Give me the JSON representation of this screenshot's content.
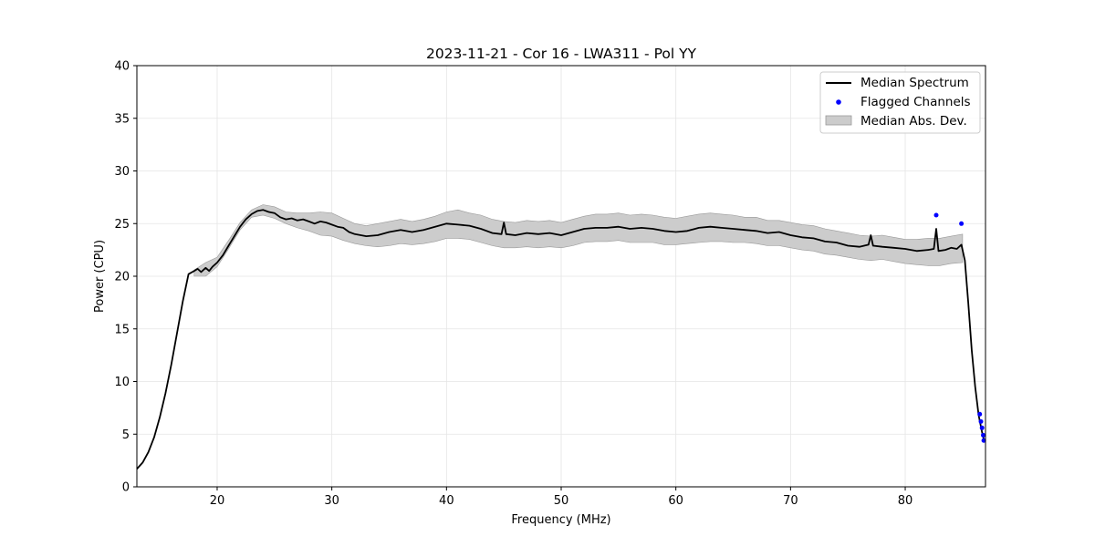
{
  "chart_data": {
    "type": "line",
    "title": "2023-11-21 - Cor 16 - LWA311 - Pol YY",
    "xlabel": "Frequency (MHz)",
    "ylabel": "Power (CPU)",
    "xlim": [
      13,
      87
    ],
    "ylim": [
      0,
      40
    ],
    "xticks": [
      20,
      30,
      40,
      50,
      60,
      70,
      80
    ],
    "yticks": [
      0,
      5,
      10,
      15,
      20,
      25,
      30,
      35,
      40
    ],
    "grid": true,
    "legend_position": "top-right",
    "colors": {
      "median": "#000000",
      "flagged": "#0000ff",
      "mad_fill": "#cccccc",
      "mad_edge": "#999999",
      "grid": "#e5e5e5"
    },
    "legend": [
      {
        "label": "Median Spectrum",
        "kind": "line"
      },
      {
        "label": "Flagged Channels",
        "kind": "marker"
      },
      {
        "label": "Median Abs. Dev.",
        "kind": "patch"
      }
    ],
    "series": [
      {
        "name": "Median Spectrum",
        "x": [
          13.0,
          13.5,
          14.0,
          14.5,
          15.0,
          15.5,
          16.0,
          16.5,
          17.0,
          17.5,
          18.0,
          18.3,
          18.6,
          19.0,
          19.3,
          19.6,
          20.0,
          20.5,
          21.0,
          21.5,
          22.0,
          22.5,
          23.0,
          23.5,
          24.0,
          24.5,
          25.0,
          25.5,
          26.0,
          26.5,
          27.0,
          27.5,
          28.0,
          28.5,
          29.0,
          29.5,
          30.0,
          30.5,
          31.0,
          31.5,
          32.0,
          33.0,
          34.0,
          35.0,
          36.0,
          37.0,
          38.0,
          39.0,
          40.0,
          41.0,
          42.0,
          43.0,
          44.0,
          44.8,
          45.0,
          45.2,
          46.0,
          47.0,
          48.0,
          49.0,
          50.0,
          51.0,
          52.0,
          53.0,
          54.0,
          55.0,
          56.0,
          57.0,
          58.0,
          59.0,
          60.0,
          61.0,
          62.0,
          63.0,
          64.0,
          65.0,
          66.0,
          67.0,
          68.0,
          69.0,
          70.0,
          71.0,
          72.0,
          73.0,
          74.0,
          75.0,
          76.0,
          76.8,
          77.0,
          77.2,
          78.0,
          79.0,
          80.0,
          81.0,
          82.0,
          82.5,
          82.7,
          82.9,
          83.5,
          84.0,
          84.5,
          84.9,
          85.2,
          85.5,
          85.8,
          86.1,
          86.4,
          86.7,
          86.9
        ],
        "y": [
          1.7,
          2.3,
          3.3,
          4.7,
          6.6,
          8.9,
          11.6,
          14.6,
          17.6,
          20.2,
          20.5,
          20.7,
          20.4,
          20.8,
          20.5,
          20.9,
          21.3,
          22.0,
          22.9,
          23.8,
          24.7,
          25.4,
          25.9,
          26.2,
          26.3,
          26.1,
          26.0,
          25.6,
          25.4,
          25.5,
          25.3,
          25.4,
          25.2,
          25.0,
          25.2,
          25.1,
          24.9,
          24.7,
          24.6,
          24.2,
          24.0,
          23.8,
          23.9,
          24.2,
          24.4,
          24.2,
          24.4,
          24.7,
          25.0,
          24.9,
          24.8,
          24.5,
          24.1,
          24.0,
          25.1,
          24.0,
          23.9,
          24.1,
          24.0,
          24.1,
          23.9,
          24.2,
          24.5,
          24.6,
          24.6,
          24.7,
          24.5,
          24.6,
          24.5,
          24.3,
          24.2,
          24.3,
          24.6,
          24.7,
          24.6,
          24.5,
          24.4,
          24.3,
          24.1,
          24.2,
          23.9,
          23.7,
          23.6,
          23.3,
          23.2,
          22.9,
          22.8,
          23.0,
          23.9,
          22.9,
          22.8,
          22.7,
          22.6,
          22.4,
          22.5,
          22.6,
          24.5,
          22.4,
          22.5,
          22.7,
          22.6,
          23.0,
          21.5,
          17.5,
          13.0,
          9.5,
          6.8,
          5.2,
          4.3
        ]
      },
      {
        "name": "Flagged Channels",
        "x": [
          82.7,
          84.9,
          86.5,
          86.6,
          86.7,
          86.8,
          86.85
        ],
        "y": [
          25.8,
          25.0,
          6.9,
          6.2,
          5.6,
          4.9,
          4.4
        ]
      },
      {
        "name": "Median Abs. Dev.",
        "x": [
          18.0,
          19.0,
          20.0,
          21.0,
          22.0,
          23.0,
          24.0,
          25.0,
          26.0,
          27.0,
          28.0,
          29.0,
          30.0,
          31.0,
          32.0,
          33.0,
          34.0,
          35.0,
          36.0,
          37.0,
          38.0,
          39.0,
          40.0,
          41.0,
          42.0,
          43.0,
          44.0,
          45.0,
          46.0,
          47.0,
          48.0,
          49.0,
          50.0,
          51.0,
          52.0,
          53.0,
          54.0,
          55.0,
          56.0,
          57.0,
          58.0,
          59.0,
          60.0,
          61.0,
          62.0,
          63.0,
          64.0,
          65.0,
          66.0,
          67.0,
          68.0,
          69.0,
          70.0,
          71.0,
          72.0,
          73.0,
          74.0,
          75.0,
          76.0,
          77.0,
          78.0,
          79.0,
          80.0,
          81.0,
          82.0,
          83.0,
          84.0,
          85.0
        ],
        "lower": [
          20.0,
          20.0,
          20.9,
          22.6,
          24.4,
          25.6,
          25.8,
          25.5,
          25.0,
          24.6,
          24.3,
          23.9,
          23.8,
          23.4,
          23.1,
          22.9,
          22.8,
          22.9,
          23.1,
          23.0,
          23.1,
          23.3,
          23.6,
          23.6,
          23.5,
          23.2,
          22.9,
          22.7,
          22.7,
          22.8,
          22.7,
          22.8,
          22.7,
          22.9,
          23.2,
          23.3,
          23.3,
          23.4,
          23.2,
          23.2,
          23.2,
          23.0,
          23.0,
          23.1,
          23.2,
          23.3,
          23.3,
          23.2,
          23.2,
          23.1,
          22.9,
          22.9,
          22.7,
          22.5,
          22.4,
          22.1,
          22.0,
          21.8,
          21.6,
          21.5,
          21.6,
          21.4,
          21.2,
          21.1,
          21.0,
          21.0,
          21.2,
          21.3
        ],
        "upper": [
          20.6,
          21.3,
          21.8,
          23.4,
          25.1,
          26.3,
          26.8,
          26.6,
          26.1,
          26.0,
          26.0,
          26.1,
          26.0,
          25.5,
          25.0,
          24.8,
          25.0,
          25.2,
          25.4,
          25.2,
          25.4,
          25.7,
          26.1,
          26.3,
          26.0,
          25.8,
          25.4,
          25.2,
          25.1,
          25.3,
          25.2,
          25.3,
          25.1,
          25.4,
          25.7,
          25.9,
          25.9,
          26.0,
          25.8,
          25.9,
          25.8,
          25.6,
          25.5,
          25.7,
          25.9,
          26.0,
          25.9,
          25.8,
          25.6,
          25.6,
          25.3,
          25.3,
          25.1,
          24.9,
          24.8,
          24.5,
          24.3,
          24.1,
          23.9,
          23.8,
          23.9,
          23.7,
          23.5,
          23.5,
          23.6,
          23.6,
          23.8,
          24.0
        ]
      }
    ]
  }
}
